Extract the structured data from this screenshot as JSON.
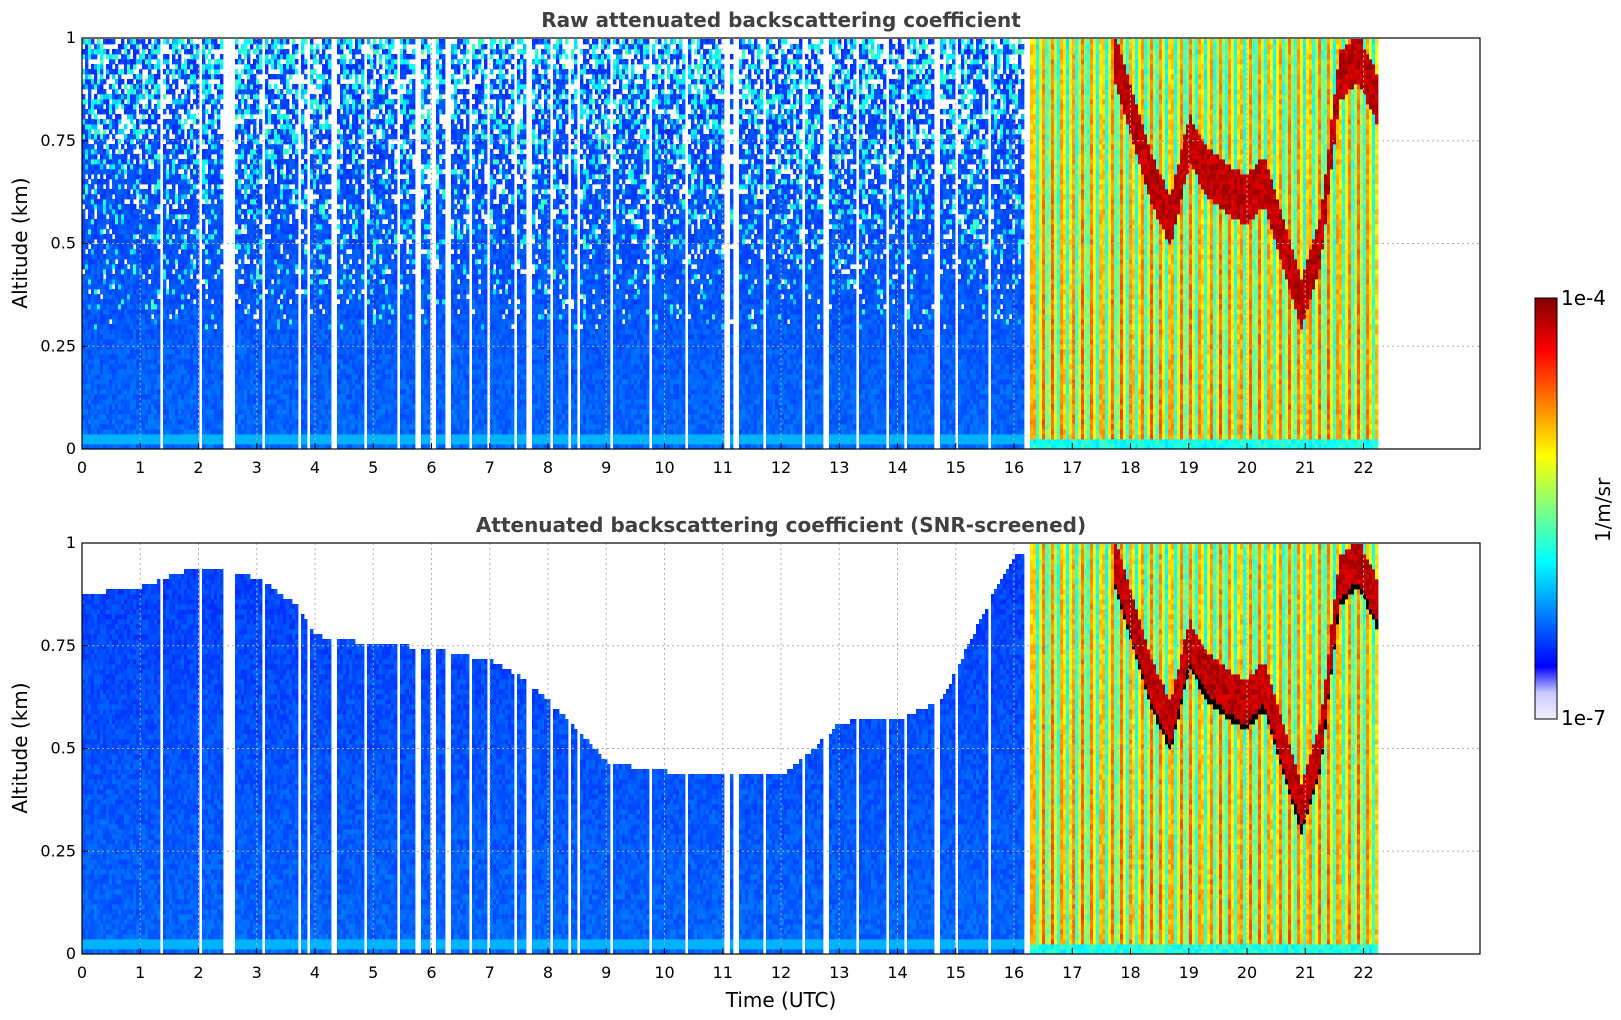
{
  "chart_data": [
    {
      "type": "heatmap",
      "title": "Raw attenuated backscattering coefficient",
      "xlabel": "",
      "ylabel": "Altitude (km)",
      "xlim": [
        0,
        24
      ],
      "ylim": [
        0,
        1
      ],
      "xticks": [
        "0",
        "1",
        "2",
        "3",
        "4",
        "5",
        "6",
        "7",
        "8",
        "9",
        "10",
        "11",
        "12",
        "13",
        "14",
        "15",
        "16",
        "17",
        "18",
        "19",
        "20",
        "21",
        "22"
      ],
      "yticks": [
        "0",
        "0.25",
        "0.5",
        "0.75",
        "1"
      ],
      "grid": true,
      "data_end_hour": 22.2,
      "gap_hours": [
        1.35,
        2.0,
        2.45,
        2.55,
        3.1,
        3.7,
        3.85,
        4.3,
        4.85,
        5.4,
        5.75,
        6.0,
        6.25,
        6.65,
        6.95,
        7.4,
        7.65,
        8.05,
        8.35,
        8.5,
        9.05,
        9.75,
        10.35,
        11.05,
        11.2,
        11.7,
        12.35,
        12.75,
        13.3,
        13.8,
        14.1,
        14.65,
        15.0,
        15.55,
        16.2
      ],
      "cloud_layer": {
        "start_hour": 17.7,
        "end_hour": 22.2,
        "base_km": [
          0.9,
          0.75,
          0.6,
          0.5,
          0.7,
          0.62,
          0.58,
          0.55,
          0.6,
          0.45,
          0.3,
          0.45,
          0.85,
          0.9,
          0.8
        ]
      },
      "snr_screened": false
    },
    {
      "type": "heatmap",
      "title": "Attenuated backscattering coefficient (SNR-screened)",
      "xlabel": "Time (UTC)",
      "ylabel": "Altitude (km)",
      "xlim": [
        0,
        24
      ],
      "ylim": [
        0,
        1
      ],
      "xticks": [
        "0",
        "1",
        "2",
        "3",
        "4",
        "5",
        "6",
        "7",
        "8",
        "9",
        "10",
        "11",
        "12",
        "13",
        "14",
        "15",
        "16",
        "17",
        "18",
        "19",
        "20",
        "21",
        "22"
      ],
      "yticks": [
        "0",
        "0.25",
        "0.5",
        "0.75",
        "1"
      ],
      "grid": true,
      "data_end_hour": 22.2,
      "gap_hours": [
        1.35,
        2.0,
        2.45,
        2.55,
        3.1,
        3.7,
        3.85,
        4.3,
        4.85,
        5.4,
        5.75,
        6.0,
        6.25,
        6.65,
        6.95,
        7.4,
        7.65,
        8.05,
        8.35,
        8.5,
        9.05,
        9.75,
        10.35,
        11.05,
        11.2,
        11.7,
        12.35,
        12.75,
        13.3,
        13.8,
        14.1,
        14.65,
        15.0,
        15.55,
        16.2
      ],
      "signal_top_km": [
        [
          0,
          0.88
        ],
        [
          1,
          0.9
        ],
        [
          2,
          0.95
        ],
        [
          3,
          0.92
        ],
        [
          3.7,
          0.85
        ],
        [
          4,
          0.78
        ],
        [
          5,
          0.76
        ],
        [
          6,
          0.75
        ],
        [
          7,
          0.72
        ],
        [
          7.5,
          0.68
        ],
        [
          8,
          0.62
        ],
        [
          8.5,
          0.55
        ],
        [
          9,
          0.47
        ],
        [
          10,
          0.45
        ],
        [
          11,
          0.45
        ],
        [
          12,
          0.44
        ],
        [
          12.5,
          0.5
        ],
        [
          13,
          0.57
        ],
        [
          14,
          0.58
        ],
        [
          14.7,
          0.62
        ],
        [
          15,
          0.7
        ],
        [
          15.5,
          0.85
        ],
        [
          16,
          0.98
        ]
      ],
      "cloud_layer": {
        "start_hour": 17.7,
        "end_hour": 22.2,
        "base_km": [
          0.9,
          0.75,
          0.6,
          0.5,
          0.7,
          0.62,
          0.58,
          0.55,
          0.6,
          0.45,
          0.3,
          0.45,
          0.85,
          0.9,
          0.8
        ]
      },
      "snr_screened": true
    }
  ],
  "colorbar": {
    "label": "1/m/sr",
    "max_label": "1e-4",
    "min_label": "1e-7",
    "scale": "log",
    "range": [
      1e-07,
      0.0001
    ],
    "colormap": [
      "#f0f0ff",
      "#c8c8ff",
      "#0000ff",
      "#0040ff",
      "#0080ff",
      "#00c0ff",
      "#00ffff",
      "#40ffc0",
      "#80ff80",
      "#c0ff40",
      "#ffff00",
      "#ffc000",
      "#ff8000",
      "#ff4000",
      "#ff0000",
      "#c00000",
      "#800000"
    ]
  }
}
